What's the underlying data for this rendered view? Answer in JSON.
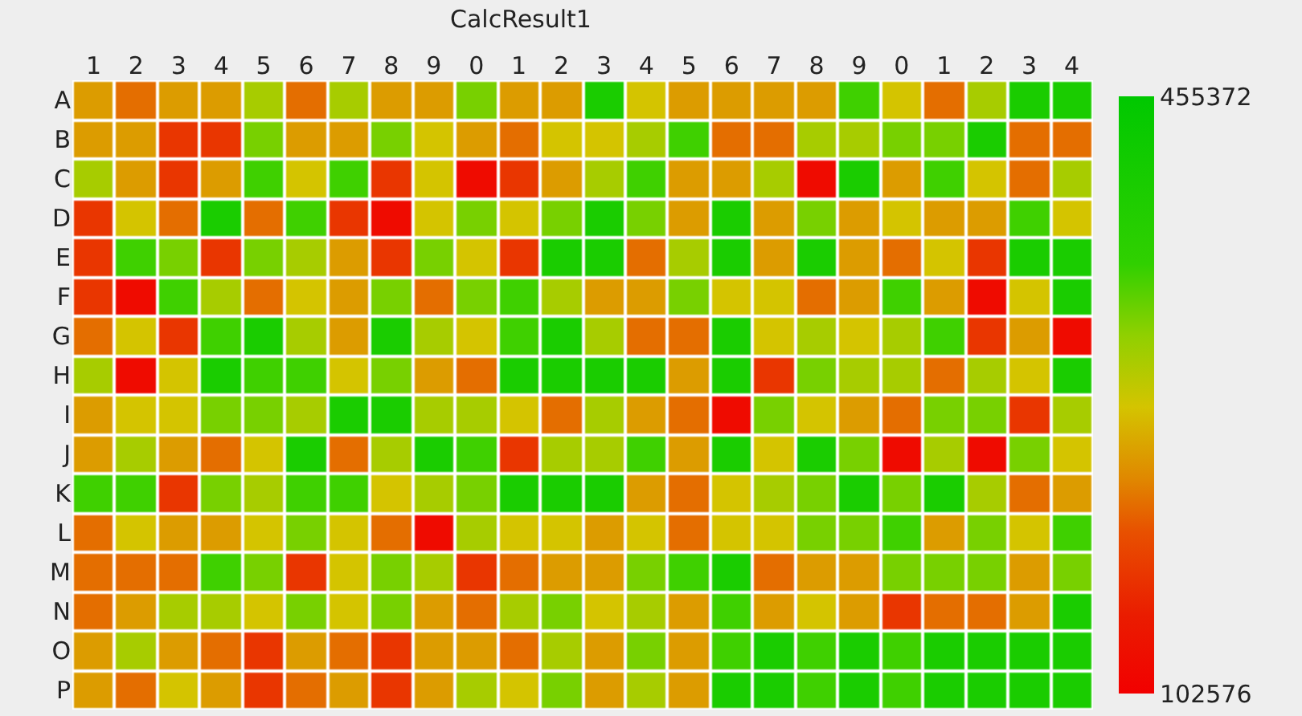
{
  "chart_data": {
    "type": "heatmap",
    "title": "CalcResult1",
    "categories": [
      "1",
      "2",
      "3",
      "4",
      "5",
      "6",
      "7",
      "8",
      "9",
      "0",
      "1",
      "2",
      "3",
      "4",
      "5",
      "6",
      "7",
      "8",
      "9",
      "0",
      "1",
      "2",
      "3",
      "4"
    ],
    "y_categories": [
      "A",
      "B",
      "C",
      "D",
      "E",
      "F",
      "G",
      "H",
      "I",
      "J",
      "K",
      "L",
      "M",
      "N",
      "O",
      "P"
    ],
    "cells": [
      [
        244000,
        215000,
        244000,
        244000,
        300000,
        215000,
        300000,
        244000,
        244000,
        325000,
        244000,
        244000,
        402000,
        272000,
        244000,
        244000,
        244000,
        244000,
        350000,
        272000,
        215000,
        300000,
        402000,
        402000
      ],
      [
        244000,
        244000,
        173000,
        173000,
        325000,
        244000,
        244000,
        325000,
        272000,
        244000,
        215000,
        272000,
        272000,
        300000,
        350000,
        215000,
        215000,
        300000,
        300000,
        325000,
        325000,
        402000,
        215000,
        215000
      ],
      [
        300000,
        244000,
        173000,
        244000,
        350000,
        272000,
        350000,
        173000,
        272000,
        120000,
        173000,
        244000,
        300000,
        350000,
        244000,
        244000,
        300000,
        120000,
        402000,
        244000,
        350000,
        272000,
        215000,
        300000
      ],
      [
        173000,
        272000,
        215000,
        402000,
        215000,
        350000,
        173000,
        120000,
        272000,
        325000,
        272000,
        325000,
        402000,
        325000,
        244000,
        402000,
        244000,
        325000,
        244000,
        272000,
        244000,
        244000,
        350000,
        272000
      ],
      [
        173000,
        350000,
        325000,
        173000,
        325000,
        300000,
        244000,
        173000,
        325000,
        272000,
        173000,
        402000,
        402000,
        215000,
        300000,
        402000,
        244000,
        402000,
        244000,
        215000,
        272000,
        173000,
        402000,
        402000
      ],
      [
        173000,
        120000,
        350000,
        300000,
        215000,
        272000,
        244000,
        325000,
        215000,
        325000,
        350000,
        300000,
        244000,
        244000,
        325000,
        272000,
        272000,
        215000,
        244000,
        350000,
        244000,
        120000,
        272000,
        402000
      ],
      [
        215000,
        272000,
        173000,
        350000,
        402000,
        300000,
        244000,
        402000,
        300000,
        272000,
        350000,
        402000,
        300000,
        215000,
        215000,
        402000,
        272000,
        300000,
        272000,
        300000,
        350000,
        173000,
        244000,
        120000
      ],
      [
        300000,
        120000,
        272000,
        402000,
        350000,
        350000,
        272000,
        325000,
        244000,
        215000,
        402000,
        402000,
        402000,
        402000,
        244000,
        402000,
        173000,
        325000,
        300000,
        300000,
        215000,
        300000,
        272000,
        402000
      ],
      [
        244000,
        272000,
        272000,
        325000,
        325000,
        300000,
        402000,
        402000,
        300000,
        300000,
        272000,
        215000,
        300000,
        244000,
        215000,
        120000,
        325000,
        272000,
        244000,
        215000,
        325000,
        325000,
        173000,
        300000
      ],
      [
        244000,
        300000,
        244000,
        215000,
        272000,
        402000,
        215000,
        300000,
        402000,
        350000,
        173000,
        300000,
        300000,
        350000,
        244000,
        402000,
        272000,
        402000,
        325000,
        120000,
        300000,
        120000,
        325000,
        272000
      ],
      [
        350000,
        350000,
        173000,
        325000,
        300000,
        350000,
        350000,
        272000,
        300000,
        325000,
        402000,
        402000,
        402000,
        244000,
        215000,
        272000,
        300000,
        325000,
        402000,
        325000,
        402000,
        300000,
        215000,
        244000
      ],
      [
        215000,
        272000,
        244000,
        244000,
        272000,
        325000,
        272000,
        215000,
        120000,
        300000,
        272000,
        272000,
        244000,
        272000,
        215000,
        272000,
        272000,
        325000,
        325000,
        350000,
        244000,
        325000,
        272000,
        350000
      ],
      [
        215000,
        215000,
        215000,
        350000,
        325000,
        173000,
        272000,
        325000,
        300000,
        173000,
        215000,
        244000,
        244000,
        325000,
        350000,
        402000,
        215000,
        244000,
        244000,
        325000,
        325000,
        325000,
        244000,
        325000
      ],
      [
        215000,
        244000,
        300000,
        300000,
        272000,
        325000,
        272000,
        325000,
        244000,
        215000,
        300000,
        325000,
        272000,
        300000,
        244000,
        350000,
        244000,
        272000,
        244000,
        173000,
        215000,
        215000,
        244000,
        402000
      ],
      [
        244000,
        300000,
        244000,
        215000,
        173000,
        244000,
        215000,
        173000,
        244000,
        244000,
        215000,
        300000,
        244000,
        325000,
        244000,
        350000,
        402000,
        350000,
        402000,
        350000,
        402000,
        402000,
        402000,
        402000
      ],
      [
        244000,
        215000,
        272000,
        244000,
        173000,
        215000,
        244000,
        173000,
        244000,
        300000,
        272000,
        325000,
        244000,
        300000,
        244000,
        402000,
        402000,
        350000,
        402000,
        350000,
        402000,
        402000,
        402000,
        402000
      ]
    ],
    "clim": [
      102576,
      455372
    ],
    "cticks": [
      102576,
      455372
    ]
  }
}
